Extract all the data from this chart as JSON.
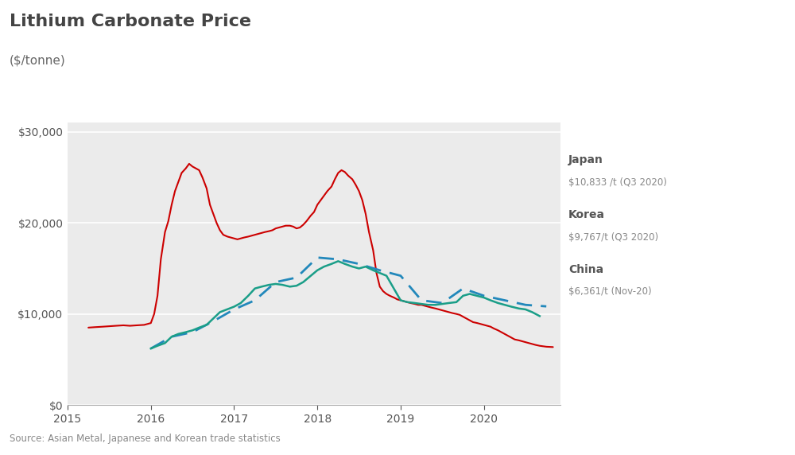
{
  "title": "Lithium Carbonate Price",
  "subtitle": "($/tonne)",
  "source_text": "Source: Asian Metal, Japanese and Korean trade statistics",
  "outer_bg": "#ffffff",
  "plot_bg": "#ebebeb",
  "ylim": [
    0,
    31000
  ],
  "yticks": [
    0,
    10000,
    20000,
    30000
  ],
  "colors": {
    "china": "#cc0000",
    "japan": "#2288bb",
    "korea": "#1a9e88"
  },
  "china_dates": [
    2015.25,
    2015.33,
    2015.42,
    2015.5,
    2015.58,
    2015.67,
    2015.75,
    2015.83,
    2015.92,
    2016.0,
    2016.04,
    2016.08,
    2016.12,
    2016.17,
    2016.21,
    2016.25,
    2016.29,
    2016.33,
    2016.37,
    2016.42,
    2016.46,
    2016.5,
    2016.54,
    2016.58,
    2016.62,
    2016.67,
    2016.71,
    2016.75,
    2016.79,
    2016.83,
    2016.87,
    2016.92,
    2016.96,
    2017.0,
    2017.04,
    2017.08,
    2017.12,
    2017.17,
    2017.21,
    2017.25,
    2017.29,
    2017.33,
    2017.37,
    2017.42,
    2017.46,
    2017.5,
    2017.54,
    2017.58,
    2017.62,
    2017.67,
    2017.71,
    2017.75,
    2017.79,
    2017.83,
    2017.87,
    2017.92,
    2017.96,
    2018.0,
    2018.04,
    2018.08,
    2018.12,
    2018.17,
    2018.21,
    2018.25,
    2018.29,
    2018.33,
    2018.37,
    2018.42,
    2018.46,
    2018.5,
    2018.54,
    2018.58,
    2018.62,
    2018.67,
    2018.71,
    2018.75,
    2018.79,
    2018.83,
    2018.87,
    2018.92,
    2018.96,
    2019.0,
    2019.04,
    2019.08,
    2019.12,
    2019.17,
    2019.21,
    2019.25,
    2019.29,
    2019.33,
    2019.37,
    2019.42,
    2019.46,
    2019.5,
    2019.54,
    2019.58,
    2019.62,
    2019.67,
    2019.71,
    2019.75,
    2019.79,
    2019.83,
    2019.87,
    2019.92,
    2019.96,
    2020.0,
    2020.04,
    2020.08,
    2020.12,
    2020.17,
    2020.21,
    2020.25,
    2020.29,
    2020.33,
    2020.37,
    2020.42,
    2020.46,
    2020.5,
    2020.54,
    2020.58,
    2020.62,
    2020.67,
    2020.71,
    2020.75,
    2020.79,
    2020.83
  ],
  "china_vals": [
    8500,
    8550,
    8600,
    8650,
    8700,
    8750,
    8700,
    8750,
    8800,
    9000,
    10000,
    12000,
    16000,
    19000,
    20200,
    22000,
    23500,
    24500,
    25500,
    26000,
    26500,
    26200,
    26000,
    25800,
    25000,
    23800,
    22000,
    21000,
    20000,
    19200,
    18700,
    18500,
    18400,
    18300,
    18200,
    18300,
    18400,
    18500,
    18600,
    18700,
    18800,
    18900,
    19000,
    19100,
    19200,
    19400,
    19500,
    19600,
    19700,
    19700,
    19600,
    19400,
    19500,
    19800,
    20200,
    20800,
    21200,
    22000,
    22500,
    23000,
    23500,
    24000,
    24800,
    25500,
    25800,
    25600,
    25200,
    24800,
    24200,
    23500,
    22500,
    21000,
    19000,
    17000,
    14500,
    13000,
    12500,
    12200,
    12000,
    11800,
    11600,
    11500,
    11400,
    11300,
    11200,
    11100,
    11000,
    11000,
    10900,
    10800,
    10700,
    10600,
    10500,
    10400,
    10300,
    10200,
    10100,
    10000,
    9900,
    9700,
    9500,
    9300,
    9100,
    9000,
    8900,
    8800,
    8700,
    8600,
    8400,
    8200,
    8000,
    7800,
    7600,
    7400,
    7200,
    7100,
    7000,
    6900,
    6800,
    6700,
    6600,
    6500,
    6450,
    6400,
    6380,
    6361
  ],
  "japan_dates": [
    2016.0,
    2016.25,
    2016.5,
    2016.75,
    2017.0,
    2017.25,
    2017.5,
    2017.75,
    2018.0,
    2018.25,
    2018.5,
    2018.75,
    2019.0,
    2019.25,
    2019.5,
    2019.75,
    2020.0,
    2020.25,
    2020.5,
    2020.75
  ],
  "japan_vals": [
    6200,
    7500,
    8000,
    9200,
    10500,
    11500,
    13500,
    14000,
    16200,
    16000,
    15500,
    14800,
    14200,
    11500,
    11200,
    12800,
    12000,
    11500,
    11000,
    10833
  ],
  "korea_dates": [
    2016.0,
    2016.08,
    2016.17,
    2016.25,
    2016.33,
    2016.42,
    2016.5,
    2016.58,
    2016.67,
    2016.75,
    2016.83,
    2017.0,
    2017.08,
    2017.17,
    2017.25,
    2017.33,
    2017.42,
    2017.5,
    2017.58,
    2017.67,
    2017.75,
    2017.83,
    2018.0,
    2018.08,
    2018.17,
    2018.25,
    2018.33,
    2018.42,
    2018.5,
    2018.58,
    2018.67,
    2018.75,
    2018.83,
    2019.0,
    2019.08,
    2019.17,
    2019.25,
    2019.33,
    2019.42,
    2019.5,
    2019.58,
    2019.67,
    2019.75,
    2019.83,
    2020.0,
    2020.08,
    2020.17,
    2020.25,
    2020.33,
    2020.42,
    2020.5,
    2020.58,
    2020.67
  ],
  "korea_vals": [
    6200,
    6500,
    6800,
    7500,
    7800,
    8000,
    8200,
    8500,
    8800,
    9500,
    10200,
    10800,
    11200,
    12000,
    12800,
    13000,
    13200,
    13300,
    13200,
    13000,
    13100,
    13500,
    14800,
    15200,
    15500,
    15800,
    15500,
    15200,
    15000,
    15200,
    14800,
    14500,
    14200,
    11500,
    11300,
    11200,
    11100,
    11000,
    11000,
    11100,
    11200,
    11300,
    12000,
    12200,
    11800,
    11500,
    11200,
    11000,
    10800,
    10600,
    10500,
    10200,
    9767
  ]
}
